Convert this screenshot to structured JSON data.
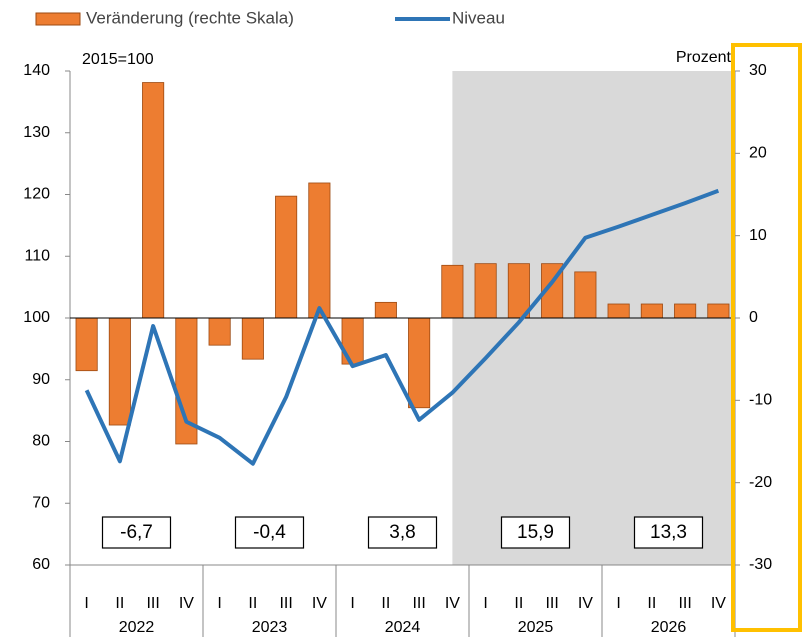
{
  "chart_data": {
    "type": "bar_line",
    "left_axis_label": "2015=100",
    "right_axis_label": "Prozent",
    "categories": [
      "I",
      "II",
      "III",
      "IV",
      "I",
      "II",
      "III",
      "IV",
      "I",
      "II",
      "III",
      "IV",
      "I",
      "II",
      "III",
      "IV",
      "I",
      "II",
      "III",
      "IV"
    ],
    "groups": [
      "2022",
      "2023",
      "2024",
      "2025",
      "2026"
    ],
    "annual_changes": [
      "-6,7",
      "-0,4",
      "3,8",
      "15,9",
      "13,3"
    ],
    "forecast_start_index": 11,
    "series": [
      {
        "name": "Veränderung (rechte Skala)",
        "type": "bar",
        "axis": "y2",
        "color": "#ed7d31",
        "values": [
          -6.4,
          -13.0,
          28.6,
          -15.3,
          -3.3,
          -5.0,
          14.8,
          16.4,
          -5.6,
          1.9,
          -10.9,
          6.4,
          6.6,
          6.6,
          6.6,
          5.6,
          1.7,
          1.7,
          1.7,
          1.7
        ]
      },
      {
        "name": "Niveau",
        "type": "line",
        "axis": "y",
        "color": "#2e75b6",
        "values": [
          88.3,
          76.8,
          98.7,
          83.2,
          80.6,
          76.4,
          87.2,
          101.6,
          92.2,
          94.0,
          83.5,
          87.9,
          93.5,
          99.3,
          105.8,
          113.0,
          114.8,
          116.7,
          118.6,
          120.6
        ]
      }
    ],
    "ylim": [
      60,
      140
    ],
    "yticks": [
      60,
      70,
      80,
      90,
      100,
      110,
      120,
      130,
      140
    ],
    "y2lim": [
      -30,
      30
    ],
    "y2ticks": [
      -30,
      -20,
      -10,
      0,
      10,
      20,
      30
    ]
  }
}
